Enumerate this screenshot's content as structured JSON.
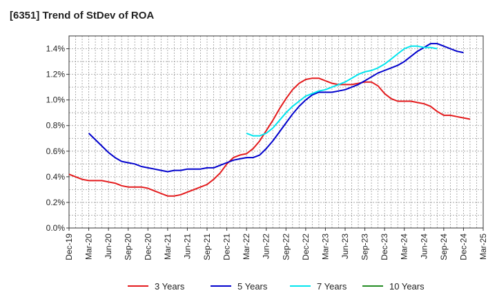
{
  "chart_data": {
    "type": "line",
    "title": "[6351]  Trend of StDev of ROA",
    "xlabel": "",
    "ylabel": "",
    "ylim": [
      0,
      1.5
    ],
    "y_ticks": [
      "0.0%",
      "0.2%",
      "0.4%",
      "0.6%",
      "0.8%",
      "1.0%",
      "1.2%",
      "1.4%"
    ],
    "x_ticks": [
      "Dec-19",
      "Mar-20",
      "Jun-20",
      "Sep-20",
      "Dec-20",
      "Mar-21",
      "Jun-21",
      "Sep-21",
      "Dec-21",
      "Mar-22",
      "Jun-22",
      "Sep-22",
      "Dec-22",
      "Mar-23",
      "Jun-23",
      "Sep-23",
      "Dec-23",
      "Mar-24",
      "Jun-24",
      "Sep-24",
      "Dec-24",
      "Mar-25"
    ],
    "grid": true,
    "legend_position": "bottom",
    "series": [
      {
        "name": "3 Years",
        "color": "#e41a1c",
        "start_month": "Dec-19",
        "values": [
          0.42,
          0.4,
          0.38,
          0.37,
          0.37,
          0.37,
          0.36,
          0.35,
          0.33,
          0.32,
          0.32,
          0.32,
          0.31,
          0.29,
          0.27,
          0.25,
          0.25,
          0.26,
          0.28,
          0.3,
          0.32,
          0.34,
          0.38,
          0.43,
          0.5,
          0.55,
          0.57,
          0.58,
          0.62,
          0.68,
          0.76,
          0.84,
          0.93,
          1.01,
          1.08,
          1.13,
          1.16,
          1.17,
          1.17,
          1.15,
          1.13,
          1.12,
          1.12,
          1.12,
          1.13,
          1.14,
          1.14,
          1.11,
          1.05,
          1.01,
          0.99,
          0.99,
          0.99,
          0.98,
          0.97,
          0.95,
          0.91,
          0.88,
          0.88,
          0.87,
          0.86,
          0.85
        ]
      },
      {
        "name": "5 Years",
        "color": "#0000cd",
        "start_month": "Mar-20",
        "values": [
          0.74,
          0.69,
          0.64,
          0.59,
          0.55,
          0.52,
          0.51,
          0.5,
          0.48,
          0.47,
          0.46,
          0.45,
          0.44,
          0.45,
          0.45,
          0.46,
          0.46,
          0.46,
          0.47,
          0.47,
          0.49,
          0.51,
          0.53,
          0.54,
          0.55,
          0.55,
          0.57,
          0.62,
          0.68,
          0.75,
          0.82,
          0.89,
          0.95,
          1.0,
          1.04,
          1.06,
          1.06,
          1.06,
          1.07,
          1.08,
          1.1,
          1.12,
          1.15,
          1.18,
          1.21,
          1.23,
          1.25,
          1.27,
          1.3,
          1.34,
          1.38,
          1.41,
          1.44,
          1.44,
          1.42,
          1.4,
          1.38,
          1.37
        ]
      },
      {
        "name": "7 Years",
        "color": "#00e5ee",
        "start_month": "Mar-22",
        "values": [
          0.74,
          0.72,
          0.72,
          0.74,
          0.78,
          0.84,
          0.9,
          0.95,
          0.99,
          1.03,
          1.05,
          1.07,
          1.08,
          1.1,
          1.12,
          1.14,
          1.17,
          1.2,
          1.22,
          1.23,
          1.25,
          1.28,
          1.32,
          1.36,
          1.4,
          1.42,
          1.42,
          1.41,
          1.41,
          1.4
        ]
      },
      {
        "name": "10 Years",
        "color": "#228b22",
        "start_month": "Mar-25",
        "values": []
      }
    ]
  }
}
